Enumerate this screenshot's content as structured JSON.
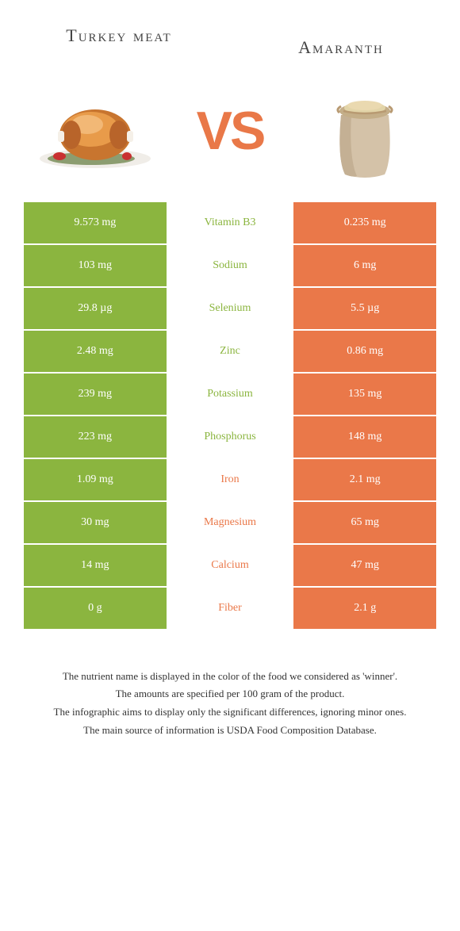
{
  "header": {
    "left_title": "Turkey meat",
    "right_title": "Amaranth"
  },
  "vs_label": "VS",
  "colors": {
    "green": "#8bb53f",
    "orange": "#ea7849",
    "turkey_body": "#c8752f",
    "turkey_highlight": "#e89b4a",
    "plate": "#f0ede8",
    "garnish": "#6b8a2d",
    "sack_body": "#d4c2a8",
    "sack_tie": "#b89a72",
    "grain": "#e2d4a8"
  },
  "rows": [
    {
      "left": "9.573 mg",
      "mid": "Vitamin B3",
      "right": "0.235 mg",
      "winner": "green"
    },
    {
      "left": "103 mg",
      "mid": "Sodium",
      "right": "6 mg",
      "winner": "green"
    },
    {
      "left": "29.8 µg",
      "mid": "Selenium",
      "right": "5.5 µg",
      "winner": "green"
    },
    {
      "left": "2.48 mg",
      "mid": "Zinc",
      "right": "0.86 mg",
      "winner": "green"
    },
    {
      "left": "239 mg",
      "mid": "Potassium",
      "right": "135 mg",
      "winner": "green"
    },
    {
      "left": "223 mg",
      "mid": "Phosphorus",
      "right": "148 mg",
      "winner": "green"
    },
    {
      "left": "1.09 mg",
      "mid": "Iron",
      "right": "2.1 mg",
      "winner": "orange"
    },
    {
      "left": "30 mg",
      "mid": "Magnesium",
      "right": "65 mg",
      "winner": "orange"
    },
    {
      "left": "14 mg",
      "mid": "Calcium",
      "right": "47 mg",
      "winner": "orange"
    },
    {
      "left": "0 g",
      "mid": "Fiber",
      "right": "2.1 g",
      "winner": "orange"
    }
  ],
  "footer": {
    "line1": "The nutrient name is displayed in the color of the food we considered as 'winner'.",
    "line2": "The amounts are specified per 100 gram of the product.",
    "line3": "The infographic aims to display only the significant differences, ignoring minor ones.",
    "line4": "The main source of information is USDA Food Composition Database."
  }
}
